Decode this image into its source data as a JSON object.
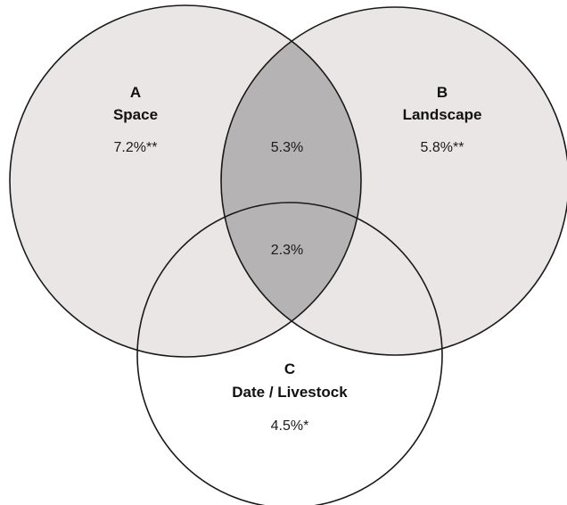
{
  "sets": {
    "a": {
      "letter": "A",
      "name": "Space",
      "value": "7.2%**"
    },
    "b": {
      "letter": "B",
      "name": "Landscape",
      "value": "5.8%**"
    },
    "c": {
      "letter": "C",
      "name": "Date / Livestock",
      "value": "4.5%*"
    }
  },
  "intersections": {
    "ab": "5.3%",
    "abc": "2.3%"
  },
  "colors": {
    "circle_fill": "#e9e6e5",
    "overlap_fill": "#b5b3b3",
    "outline": "#1a1a1a",
    "background": "#ffffff"
  }
}
